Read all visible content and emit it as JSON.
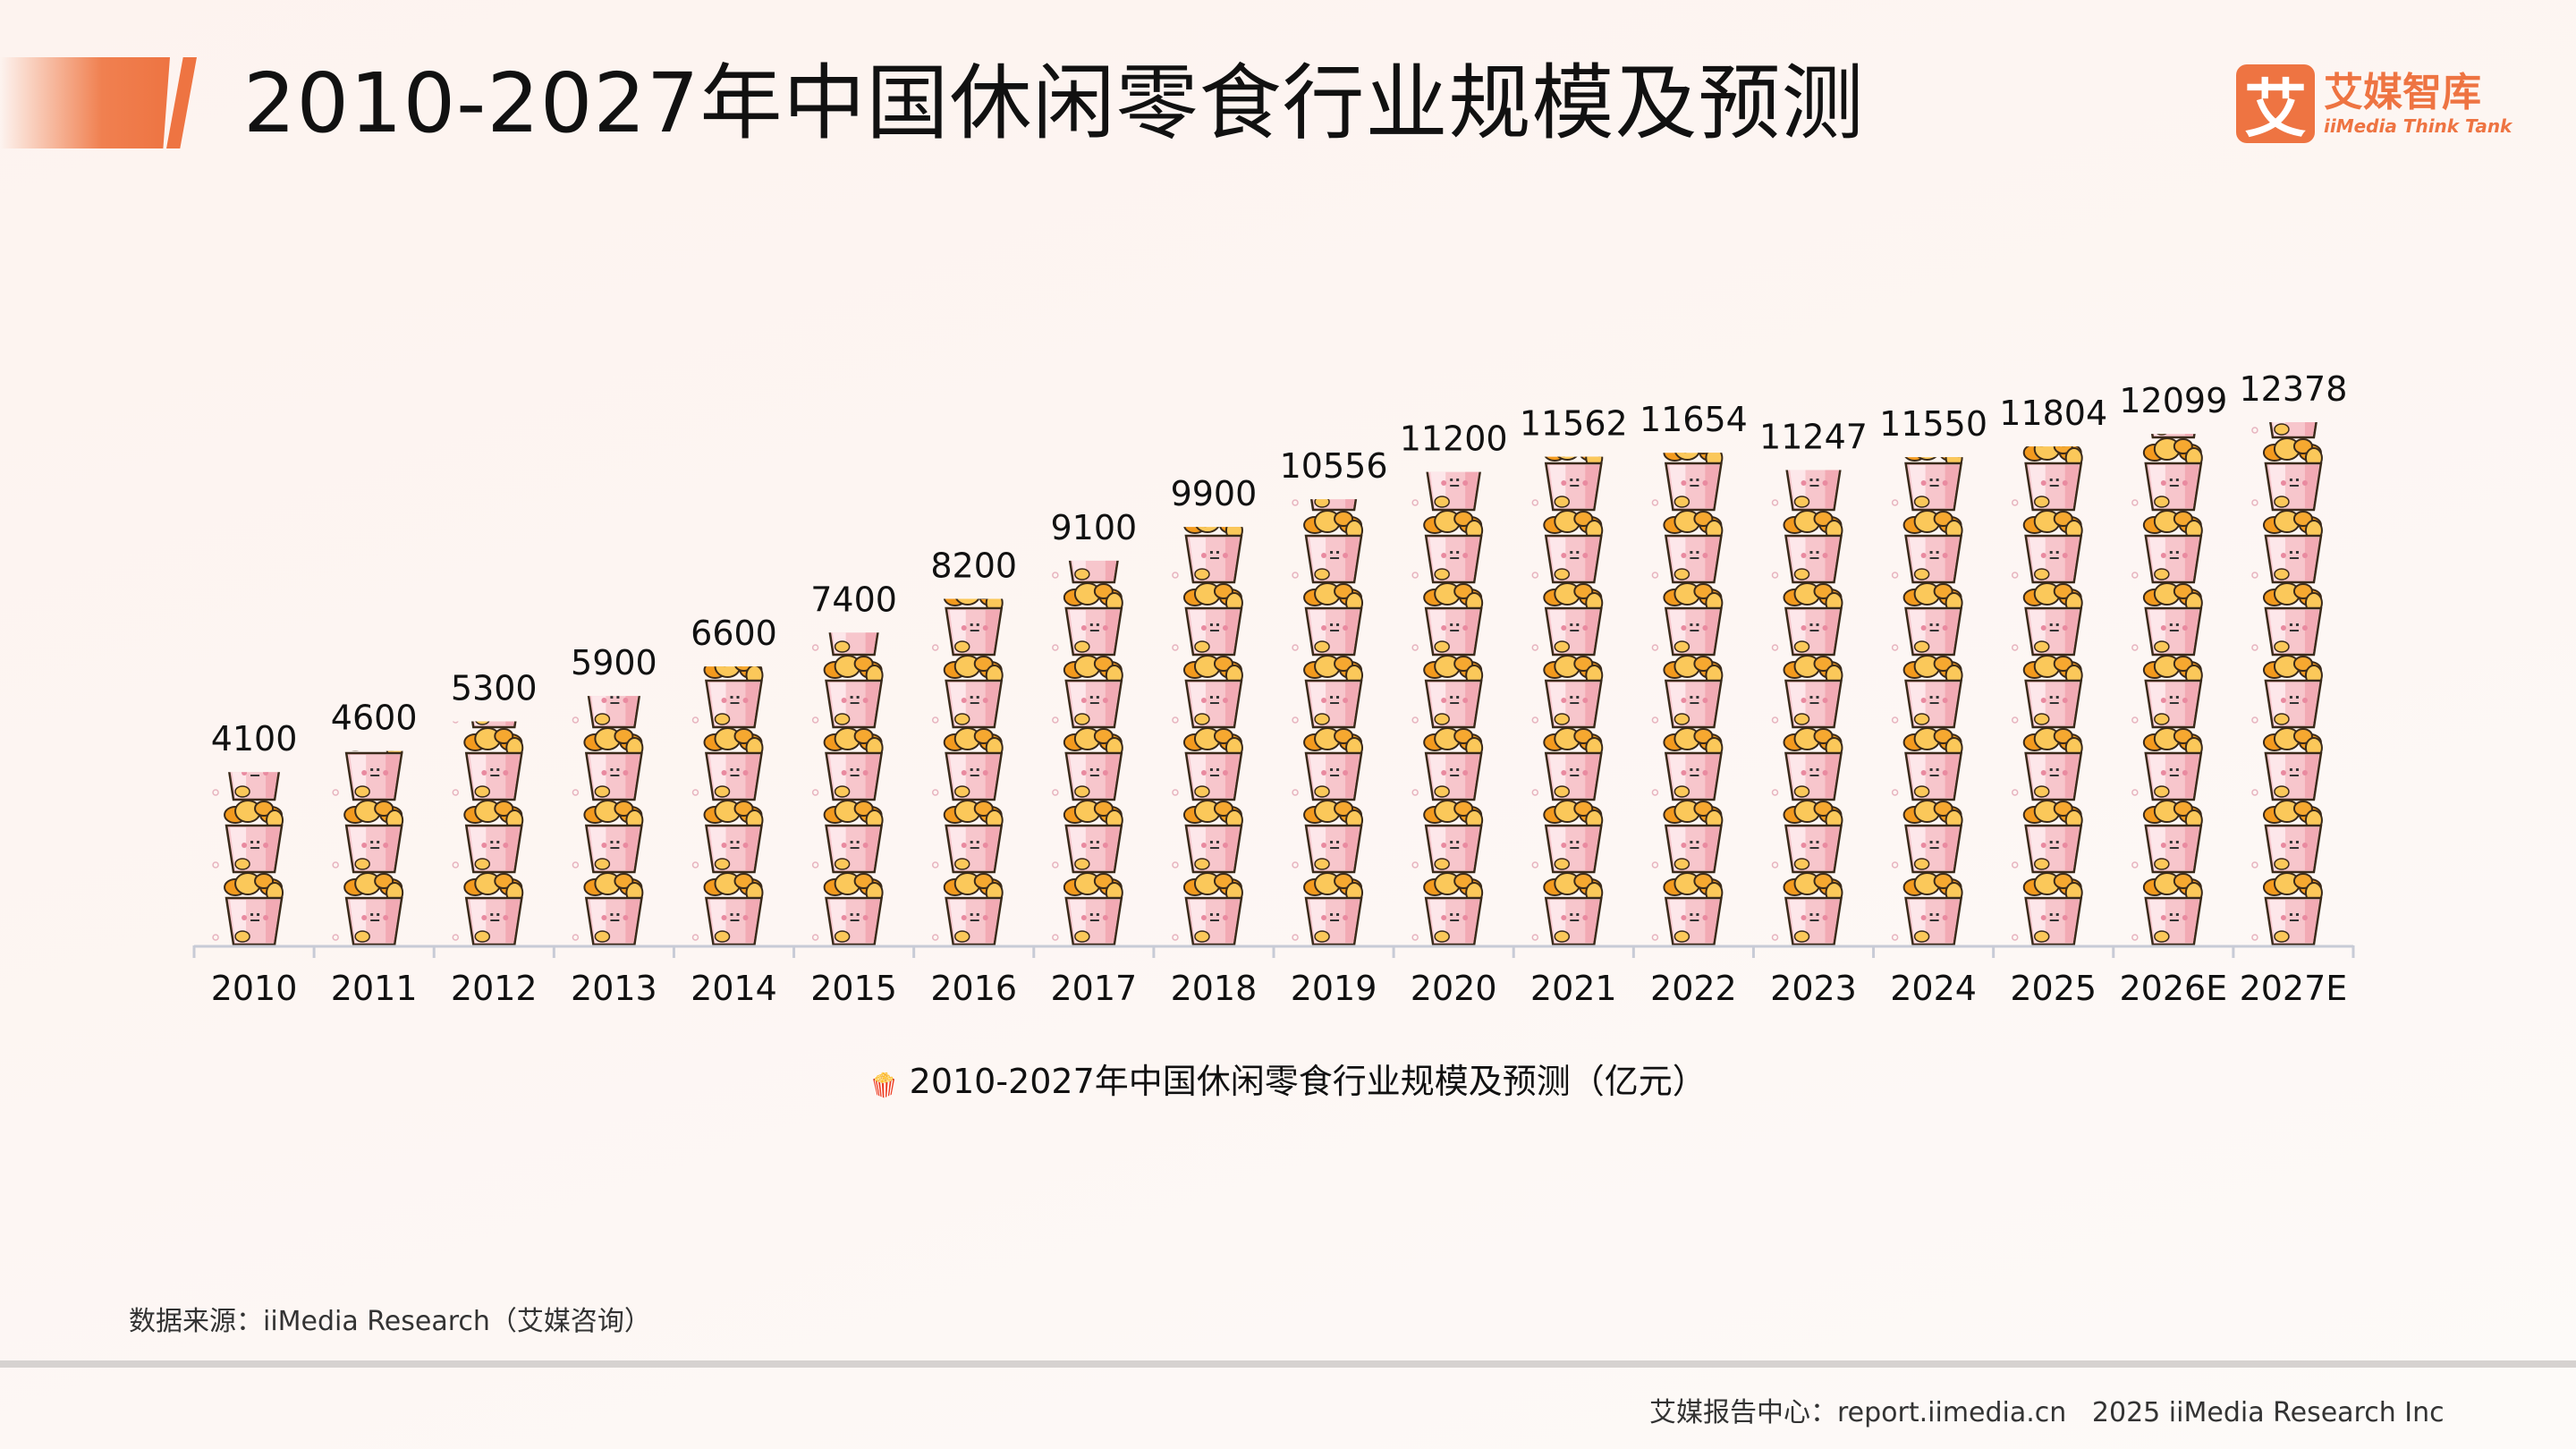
{
  "title": "2010-2027年中国休闲零食行业规模及预测",
  "logo": {
    "mark": "艾",
    "cn": "艾媒智库",
    "en": "iiMedia Think Tank"
  },
  "chart_data": {
    "type": "bar",
    "style": "pictorial (stacked snack-bucket icons)",
    "categories": [
      "2010",
      "2011",
      "2012",
      "2013",
      "2014",
      "2015",
      "2016",
      "2017",
      "2018",
      "2019",
      "2020",
      "2021",
      "2022",
      "2023",
      "2024",
      "2025",
      "2026E",
      "2027E"
    ],
    "series": [
      {
        "name": "2010-2027年中国休闲零食行业规模及预测（亿元）",
        "values": [
          4100,
          4600,
          5300,
          5900,
          6600,
          7400,
          8200,
          9100,
          9900,
          10556,
          11200,
          11562,
          11654,
          11247,
          11550,
          11804,
          12099,
          12378
        ]
      }
    ],
    "ylim": [
      0,
      13500
    ],
    "grid": false,
    "legend_position": "bottom",
    "colors": {
      "bucket": "#f7c6cc",
      "chips": "#f9b838",
      "axis": "#c8cbd6"
    }
  },
  "source": "数据来源：iiMedia Research（艾媒咨询）",
  "footer": "艾媒报告中心：report.iimedia.cn   2025 iiMedia Research Inc"
}
